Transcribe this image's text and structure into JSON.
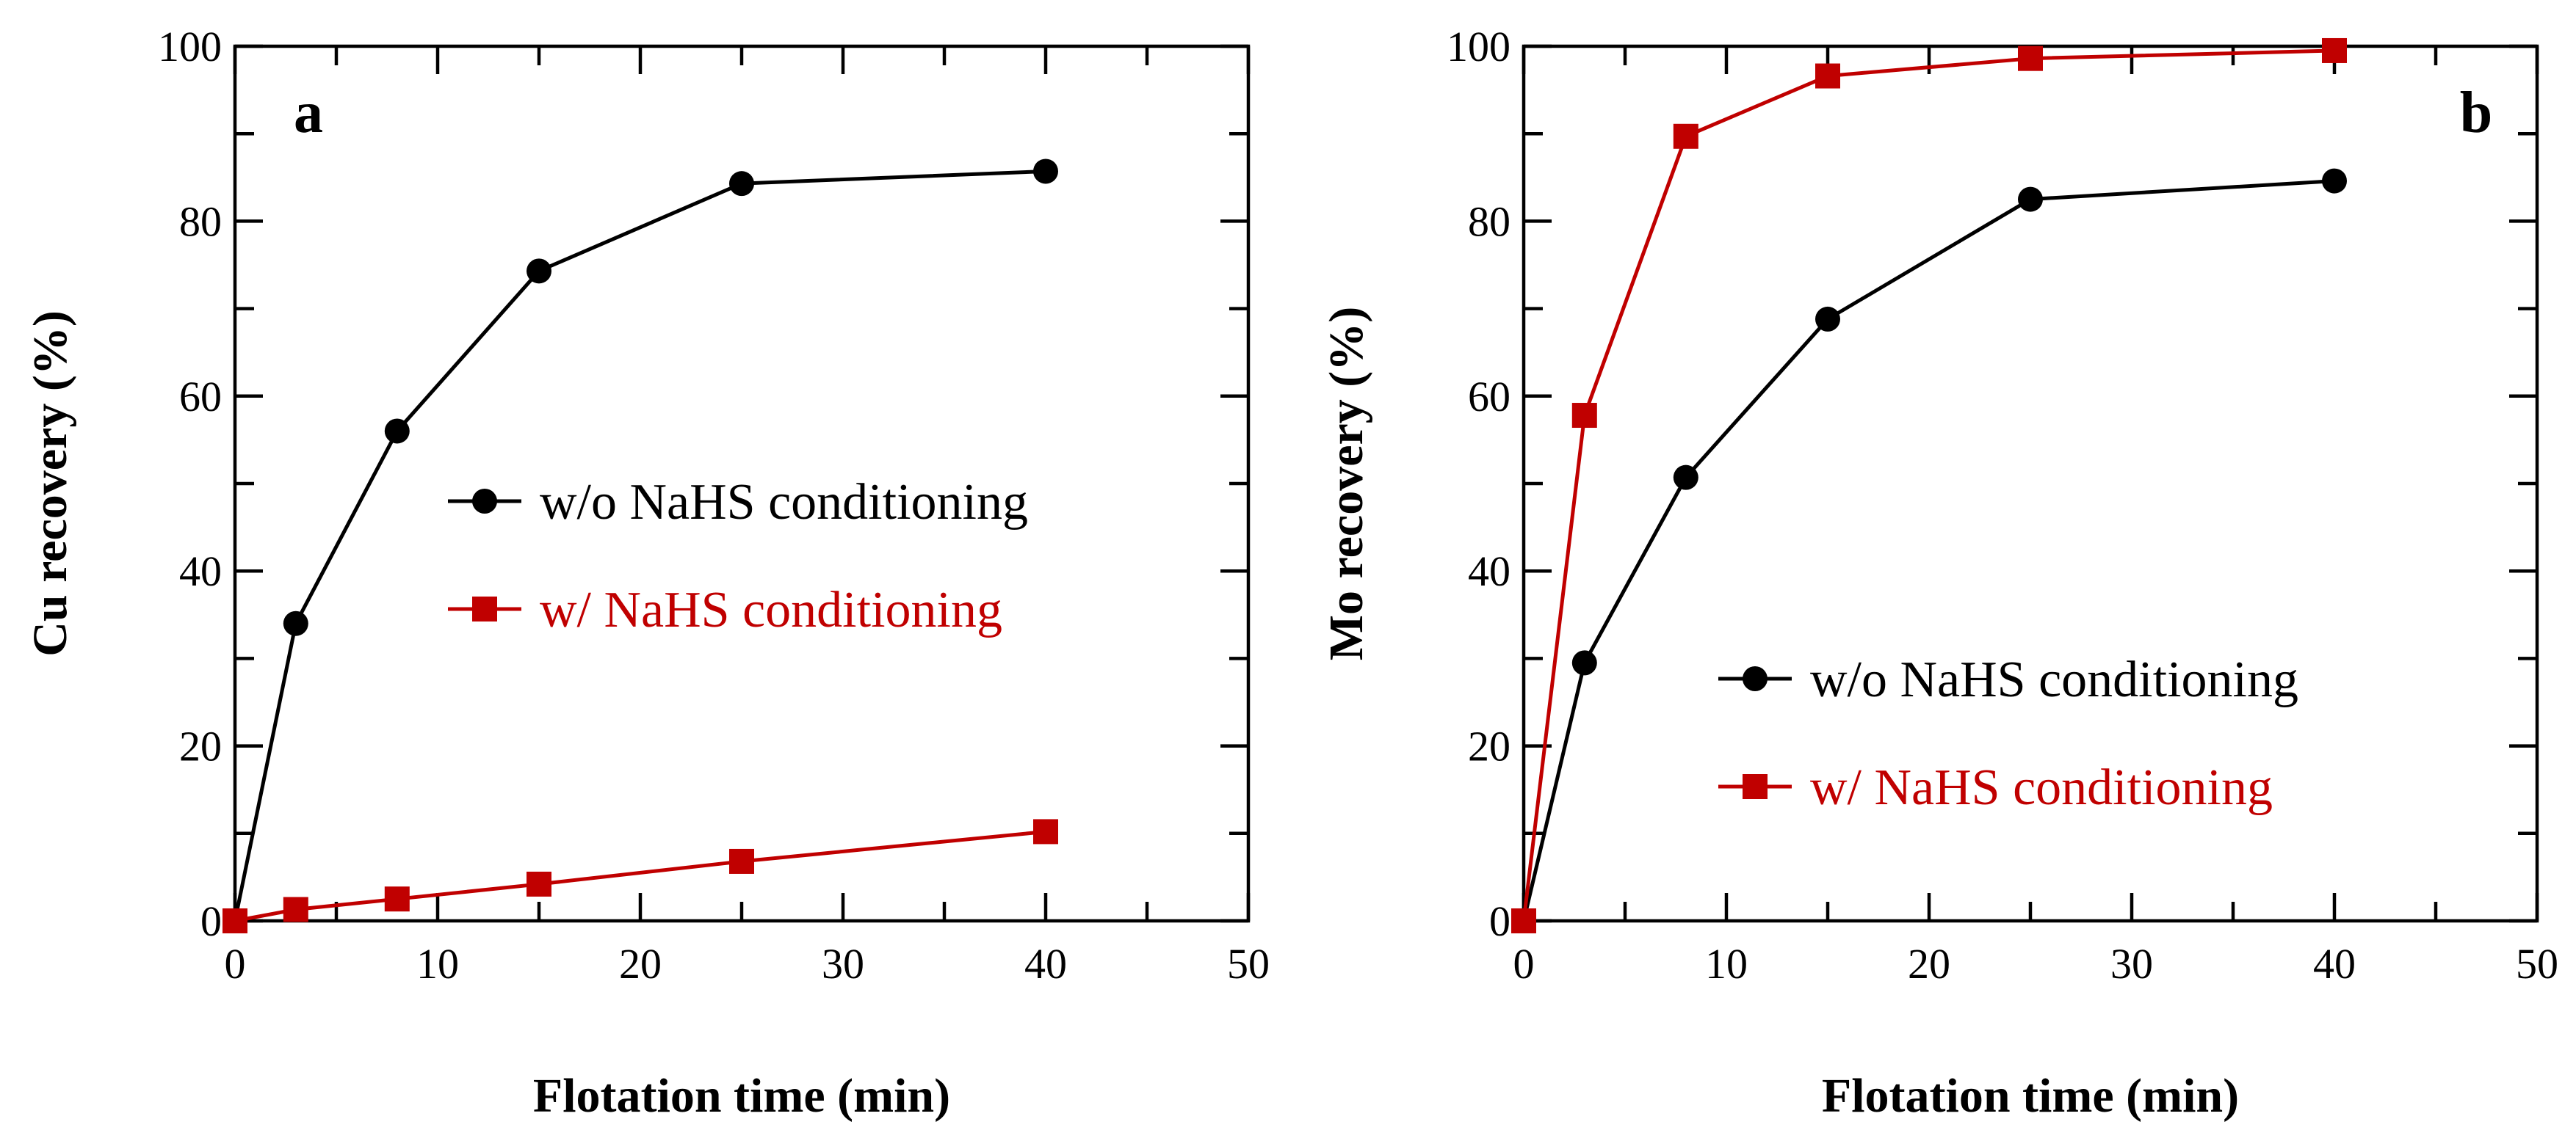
{
  "chart_data": [
    {
      "type": "line",
      "panel": "a",
      "title": "",
      "xlabel": "Flotation time (min)",
      "ylabel": "Cu recovery (%)",
      "xlim": [
        0,
        50
      ],
      "ylim": [
        0,
        100
      ],
      "xticks": [
        0,
        10,
        20,
        30,
        40,
        50
      ],
      "yticks": [
        0,
        20,
        40,
        60,
        80,
        100
      ],
      "x": [
        0,
        3,
        8,
        15,
        25,
        40
      ],
      "legend_position": "center-right",
      "series": [
        {
          "name": "w/o NaHS conditioning",
          "marker": "circle",
          "color": "#000000",
          "values": [
            0,
            34,
            56,
            74.3,
            84.3,
            85.7
          ]
        },
        {
          "name": "w/ NaHS conditioning",
          "marker": "square",
          "color": "#c00000",
          "values": [
            0,
            1.3,
            2.5,
            4.2,
            6.8,
            10.2
          ]
        }
      ]
    },
    {
      "type": "line",
      "panel": "b",
      "title": "",
      "xlabel": "Flotation time (min)",
      "ylabel": "Mo recovery (%)",
      "xlim": [
        0,
        50
      ],
      "ylim": [
        0,
        100
      ],
      "xticks": [
        0,
        10,
        20,
        30,
        40,
        50
      ],
      "yticks": [
        0,
        20,
        40,
        60,
        80,
        100
      ],
      "x": [
        0,
        3,
        8,
        15,
        25,
        40
      ],
      "legend_position": "lower-right",
      "series": [
        {
          "name": "w/o NaHS conditioning",
          "marker": "circle",
          "color": "#000000",
          "values": [
            0,
            29.5,
            50.7,
            68.8,
            82.5,
            84.6
          ]
        },
        {
          "name": "w/ NaHS conditioning",
          "marker": "square",
          "color": "#c00000",
          "values": [
            0,
            57.8,
            89.7,
            96.6,
            98.6,
            99.5
          ]
        }
      ]
    }
  ]
}
